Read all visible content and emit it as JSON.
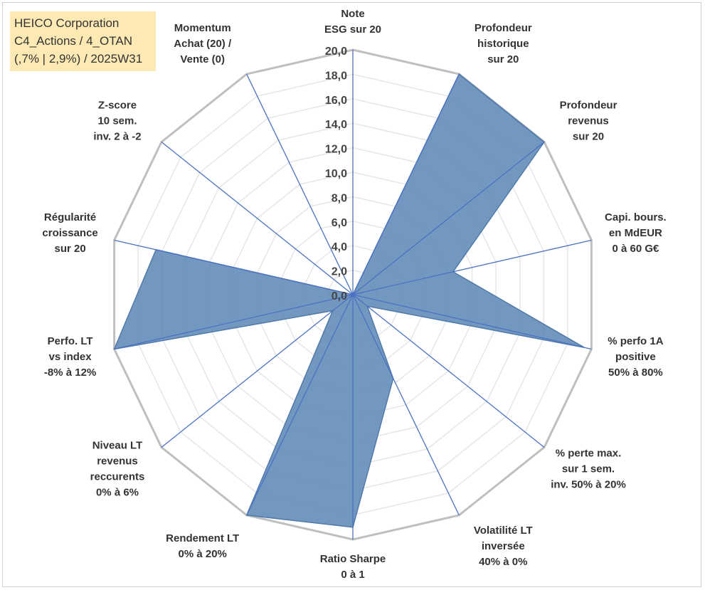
{
  "title_box": {
    "line1": "HEICO Corporation",
    "line2": "C4_Actions / 4_OTAN",
    "line3": "(,7% | 2,9%) / 2025W31"
  },
  "chart_data": {
    "type": "radar",
    "rmin": 0,
    "rmax": 20,
    "tick_step": 2,
    "tick_labels": [
      "0,0",
      "2,0",
      "4,0",
      "6,0",
      "8,0",
      "10,0",
      "12,0",
      "14,0",
      "16,0",
      "18,0",
      "20,0"
    ],
    "gridlines": true,
    "colors": {
      "fill": "#5b86b5",
      "stroke": "#4f7aab",
      "axis": "#4a72c4",
      "grid_major": "#bfbfbf",
      "grid_minor": "#e6e6e6"
    },
    "axes": [
      {
        "lines": [
          "Note",
          "ESG sur 20"
        ]
      },
      {
        "lines": [
          "Profondeur",
          "historique",
          "sur 20"
        ]
      },
      {
        "lines": [
          "Profondeur",
          "revenus",
          "sur 20"
        ]
      },
      {
        "lines": [
          "Capi. bours.",
          "en MdEUR",
          "0 à 60 G€"
        ]
      },
      {
        "lines": [
          "% perfo 1A",
          "positive",
          "50% à 80%"
        ]
      },
      {
        "lines": [
          "% perte max.",
          "sur 1 sem.",
          "inv. 50% à 20%"
        ]
      },
      {
        "lines": [
          "Volatilité LT",
          "inversée",
          "40% à 0%"
        ]
      },
      {
        "lines": [
          "Ratio Sharpe",
          "0 à 1"
        ]
      },
      {
        "lines": [
          "Rendement LT",
          "0% à 20%"
        ]
      },
      {
        "lines": [
          "Niveau LT",
          "revenus",
          "reccurents",
          "0% à 6%"
        ]
      },
      {
        "lines": [
          "Perfo. LT",
          "vs index",
          "-8% à 12%"
        ]
      },
      {
        "lines": [
          "Régularité",
          "croissance",
          "sur 20"
        ]
      },
      {
        "lines": [
          "Z-score",
          "10 sem.",
          "inv. 2 à -2"
        ]
      },
      {
        "lines": [
          "Momentum",
          "Achat (20) /",
          "Vente (0)"
        ]
      }
    ],
    "values": [
      0.0,
      20.0,
      20.0,
      8.4,
      19.4,
      1.5,
      7.6,
      19.0,
      20.0,
      2.1,
      20.0,
      16.5,
      0.0,
      0.0
    ]
  }
}
